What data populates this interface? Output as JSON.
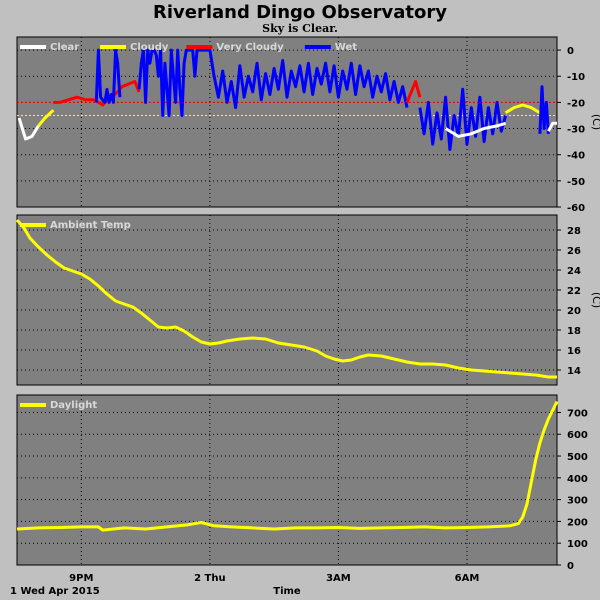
{
  "header": {
    "title": "Riverland Dingo Observatory",
    "subtitle": "Sky is Clear."
  },
  "footer": {
    "date_label": "1 Wed Apr 2015",
    "axis_label": "Time"
  },
  "colors": {
    "background": "#c0c0c0",
    "plot_background": "#808080",
    "clear": "#ffffff",
    "cloudy": "#ffff00",
    "very_cloudy": "#ff0000",
    "wet": "#0000ff",
    "ambient": "#ffff00",
    "daylight": "#ffff00"
  },
  "chart_data": [
    {
      "type": "line",
      "x_unit": "hours since 19:00",
      "xlim": [
        0,
        12.6
      ],
      "x_ticks": [
        {
          "x": 1.5,
          "label": "9PM"
        },
        {
          "x": 4.5,
          "label": "2 Thu"
        },
        {
          "x": 7.5,
          "label": "3AM"
        },
        {
          "x": 10.5,
          "label": "6AM"
        }
      ],
      "ylim": [
        -60,
        5
      ],
      "y_ticks": [
        0,
        -10,
        -20,
        -30,
        -40,
        -50,
        -60
      ],
      "yunit": "(C)",
      "grid": true,
      "legend": [
        {
          "label": "Clear",
          "color": "#ffffff"
        },
        {
          "label": "Cloudy",
          "color": "#ffff00"
        },
        {
          "label": "Very Cloudy",
          "color": "#ff0000"
        },
        {
          "label": "Wet",
          "color": "#0000ff"
        }
      ],
      "threshold_lines": [
        {
          "y": -20,
          "color": "#ff0000"
        },
        {
          "y": -25,
          "color": "#ffff00"
        }
      ],
      "series": [
        {
          "color": "#ffffff",
          "x": [
            0.05,
            0.2,
            0.35,
            0.5
          ],
          "y": [
            -26,
            -34,
            -33,
            -29
          ]
        },
        {
          "color": "#ffff00",
          "x": [
            0.5,
            0.65,
            0.85
          ],
          "y": [
            -29,
            -26,
            -23
          ]
        },
        {
          "color": "#ff0000",
          "x": [
            0.85,
            1.0,
            1.2,
            1.4,
            1.6,
            1.8,
            1.9,
            2.0,
            2.1,
            2.2,
            2.35,
            2.45,
            2.6,
            2.75,
            2.85
          ],
          "y": [
            -20,
            -20,
            -19,
            -18,
            -19,
            -19,
            -20,
            -21,
            -19,
            -18,
            -16,
            -14,
            -13,
            -12,
            -16
          ]
        },
        {
          "color": "#0000ff",
          "x": [
            1.85,
            1.9,
            1.95,
            2.0,
            2.05,
            2.1,
            2.15,
            2.2,
            2.25,
            2.3,
            2.35,
            2.4
          ],
          "y": [
            -20,
            0,
            -18,
            -19,
            -20,
            -15,
            -20,
            -17,
            -20,
            0,
            -5,
            -18
          ]
        },
        {
          "color": "#0000ff",
          "x": [
            2.85,
            2.9,
            2.95,
            3.0,
            3.05,
            3.1,
            3.15,
            3.2,
            3.25,
            3.3,
            3.35,
            3.4,
            3.45,
            3.5,
            3.55,
            3.6,
            3.65,
            3.7,
            3.75,
            3.8,
            3.85,
            3.9,
            3.95,
            4.0,
            4.05,
            4.1,
            4.15,
            4.2,
            4.3,
            4.4,
            4.5,
            4.6
          ],
          "y": [
            -15,
            -5,
            0,
            -20,
            0,
            -5,
            0,
            0,
            -2,
            -10,
            0,
            -25,
            -5,
            -15,
            -25,
            0,
            -10,
            -20,
            0,
            -15,
            -25,
            -5,
            0,
            0,
            0,
            0,
            -10,
            0,
            0,
            0,
            0,
            -10
          ]
        },
        {
          "color": "#0000ff",
          "x": [
            4.6,
            4.7,
            4.8,
            4.9,
            5.0,
            5.1,
            5.2,
            5.3,
            5.4,
            5.5,
            5.6,
            5.7,
            5.8,
            5.9,
            6.0,
            6.1,
            6.2,
            6.3,
            6.4,
            6.5,
            6.6,
            6.7,
            6.8,
            6.9,
            7.0,
            7.1,
            7.2,
            7.3,
            7.4,
            7.5,
            7.6,
            7.7,
            7.8,
            7.9,
            8.0,
            8.1,
            8.2,
            8.3,
            8.4,
            8.5,
            8.6,
            8.7,
            8.8,
            8.9,
            9.0,
            9.1
          ],
          "y": [
            -10,
            -18,
            -8,
            -20,
            -12,
            -22,
            -6,
            -18,
            -10,
            -16,
            -5,
            -19,
            -9,
            -17,
            -7,
            -15,
            -4,
            -18,
            -8,
            -14,
            -6,
            -16,
            -5,
            -17,
            -7,
            -13,
            -5,
            -16,
            -6,
            -18,
            -8,
            -15,
            -5,
            -17,
            -6,
            -14,
            -8,
            -18,
            -10,
            -16,
            -9,
            -19,
            -12,
            -20,
            -14,
            -22
          ]
        },
        {
          "color": "#ff0000",
          "x": [
            9.1,
            9.2,
            9.3,
            9.4
          ],
          "y": [
            -20,
            -16,
            -12,
            -18
          ]
        },
        {
          "color": "#0000ff",
          "x": [
            9.4,
            9.5,
            9.6,
            9.7,
            9.8,
            9.9,
            10.0,
            10.1,
            10.2,
            10.3,
            10.4,
            10.5,
            10.6,
            10.7,
            10.8,
            10.9,
            11.0,
            11.1,
            11.2,
            11.3,
            11.4
          ],
          "y": [
            -22,
            -32,
            -20,
            -36,
            -24,
            -34,
            -18,
            -38,
            -25,
            -33,
            -15,
            -36,
            -22,
            -33,
            -18,
            -35,
            -22,
            -32,
            -20,
            -31,
            -25
          ]
        },
        {
          "color": "#ffffff",
          "x": [
            10.0,
            10.3,
            10.6,
            10.9,
            11.2,
            11.4
          ],
          "y": [
            -30,
            -33,
            -32,
            -30,
            -29,
            -28
          ]
        },
        {
          "color": "#ffff00",
          "x": [
            11.4,
            11.6,
            11.8,
            12.0,
            12.2
          ],
          "y": [
            -24,
            -22,
            -21,
            -22,
            -24
          ]
        },
        {
          "color": "#0000ff",
          "x": [
            12.2,
            12.25,
            12.3,
            12.35,
            12.4
          ],
          "y": [
            -32,
            -14,
            -30,
            -20,
            -32
          ]
        },
        {
          "color": "#ffffff",
          "x": [
            12.4,
            12.5,
            12.6
          ],
          "y": [
            -31,
            -28,
            -28
          ]
        }
      ]
    },
    {
      "type": "line",
      "x_unit": "hours since 19:00",
      "xlim": [
        0,
        12.6
      ],
      "ylim": [
        12.5,
        29.5
      ],
      "y_ticks": [
        28,
        26,
        24,
        22,
        20,
        18,
        16,
        14
      ],
      "yunit": "(C)",
      "grid": true,
      "legend": [
        {
          "label": "Ambient Temp",
          "color": "#ffff00"
        }
      ],
      "series": [
        {
          "name": "Ambient Temp",
          "color": "#ffff00",
          "x": [
            0.0,
            0.15,
            0.3,
            0.5,
            0.7,
            0.9,
            1.1,
            1.3,
            1.5,
            1.7,
            1.9,
            2.1,
            2.3,
            2.5,
            2.7,
            2.9,
            3.1,
            3.3,
            3.5,
            3.7,
            3.9,
            4.1,
            4.3,
            4.5,
            4.7,
            4.9,
            5.2,
            5.5,
            5.8,
            6.1,
            6.4,
            6.7,
            7.0,
            7.2,
            7.4,
            7.6,
            7.8,
            8.0,
            8.2,
            8.5,
            8.8,
            9.1,
            9.4,
            9.7,
            10.0,
            10.3,
            10.6,
            10.9,
            11.2,
            11.5,
            11.8,
            12.1,
            12.4,
            12.6
          ],
          "y": [
            29.0,
            28.3,
            27.2,
            26.3,
            25.5,
            24.8,
            24.2,
            23.9,
            23.6,
            23.1,
            22.4,
            21.6,
            20.9,
            20.6,
            20.3,
            19.7,
            19.0,
            18.3,
            18.2,
            18.3,
            17.9,
            17.3,
            16.8,
            16.6,
            16.7,
            16.9,
            17.1,
            17.2,
            17.1,
            16.7,
            16.5,
            16.3,
            15.9,
            15.4,
            15.1,
            14.9,
            15.0,
            15.3,
            15.5,
            15.4,
            15.1,
            14.8,
            14.6,
            14.6,
            14.5,
            14.2,
            14.0,
            13.9,
            13.8,
            13.7,
            13.6,
            13.5,
            13.3,
            13.3
          ]
        }
      ]
    },
    {
      "type": "line",
      "x_unit": "hours since 19:00",
      "xlim": [
        0,
        12.6
      ],
      "ylim": [
        0,
        780
      ],
      "y_ticks": [
        700,
        600,
        500,
        400,
        300,
        200,
        100,
        0
      ],
      "grid": true,
      "legend": [
        {
          "label": "Daylight",
          "color": "#ffff00"
        }
      ],
      "series": [
        {
          "name": "Daylight",
          "color": "#ffff00",
          "x": [
            0.0,
            0.5,
            1.0,
            1.5,
            1.9,
            2.0,
            2.5,
            3.0,
            3.5,
            4.0,
            4.3,
            4.6,
            5.0,
            5.5,
            6.0,
            6.5,
            7.0,
            7.5,
            8.0,
            8.5,
            9.0,
            9.5,
            10.0,
            10.5,
            11.0,
            11.5,
            11.7,
            11.8,
            11.9,
            12.0,
            12.1,
            12.2,
            12.3,
            12.4,
            12.5,
            12.6
          ],
          "y": [
            165,
            170,
            172,
            175,
            175,
            160,
            170,
            165,
            175,
            185,
            195,
            180,
            175,
            170,
            165,
            170,
            170,
            172,
            168,
            170,
            172,
            175,
            170,
            172,
            175,
            180,
            190,
            220,
            280,
            380,
            480,
            560,
            620,
            670,
            710,
            750
          ]
        }
      ]
    }
  ]
}
